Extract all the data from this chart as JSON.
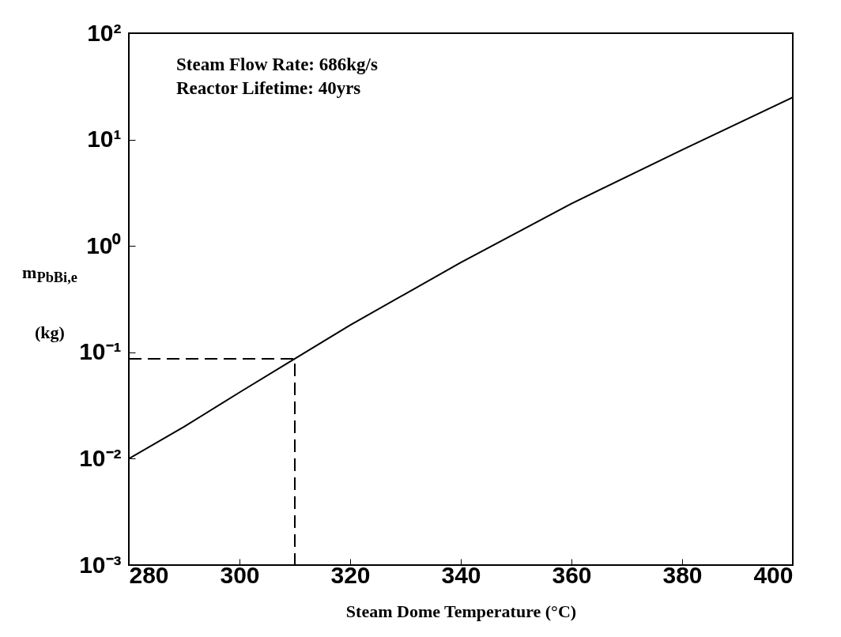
{
  "chart_data": {
    "type": "line",
    "xlabel": "Steam Dome Temperature (°C)",
    "ylabel": "m$_{PbBi,e}$ (kg)",
    "annotations": [
      "Steam Flow Rate: 686kg/s",
      "Reactor Lifetime: 40yrs"
    ],
    "log": "y",
    "grid": false,
    "xlim": [
      280,
      400
    ],
    "xticks": [
      280,
      300,
      320,
      340,
      360,
      380,
      400
    ],
    "ylim": [
      0.001,
      100
    ],
    "yticks": [
      {
        "value": 0.001,
        "label": "10⁻³"
      },
      {
        "value": 0.01,
        "label": "10⁻²"
      },
      {
        "value": 0.1,
        "label": "10⁻¹"
      },
      {
        "value": 1,
        "label": "10⁰"
      },
      {
        "value": 10,
        "label": "10¹"
      },
      {
        "value": 100,
        "label": "10²"
      }
    ],
    "series": [
      {
        "color": "#000000",
        "line_style": "solid",
        "x": [
          280,
          290,
          300,
          310,
          320,
          340,
          360,
          380,
          400
        ],
        "values": [
          0.01,
          0.02,
          0.042,
          0.087,
          0.18,
          0.7,
          2.5,
          8,
          25
        ]
      },
      {
        "color": "#000000",
        "line_style": "dashed",
        "x": [
          280,
          310,
          310
        ],
        "values": [
          0.087,
          0.087,
          0.001
        ]
      }
    ]
  }
}
